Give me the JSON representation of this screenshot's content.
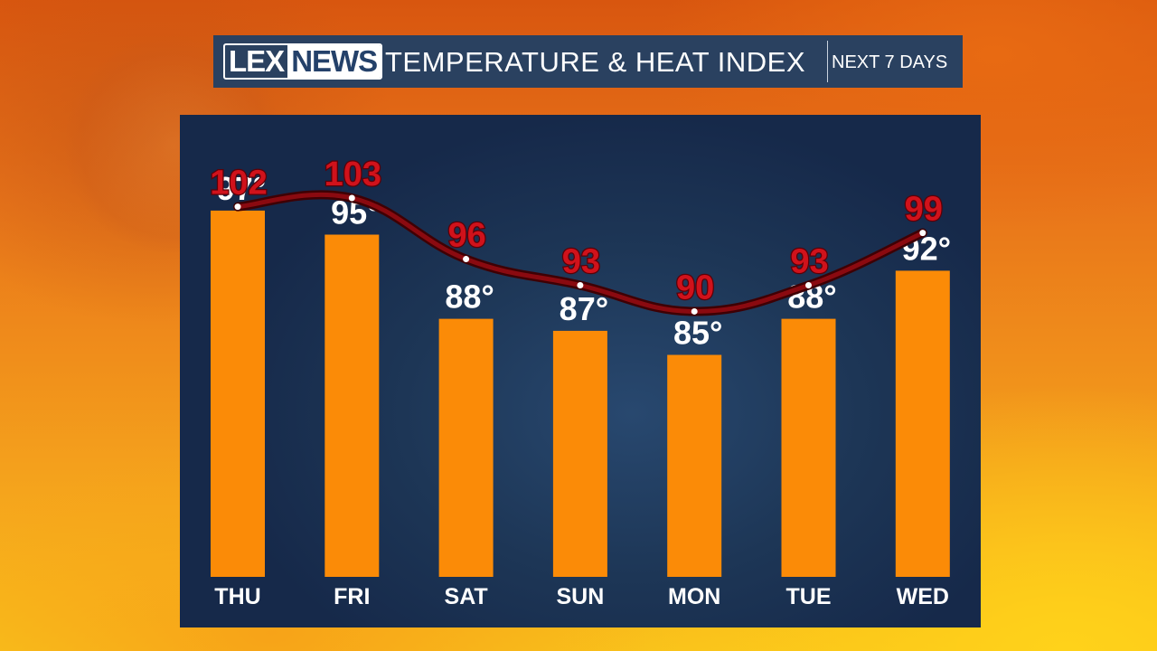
{
  "header": {
    "logo_left": "LEX",
    "logo_right": "NEWS",
    "title": "TEMPERATURE & HEAT INDEX",
    "subtitle": "NEXT 7 DAYS"
  },
  "colors": {
    "bar": "#fb8b07",
    "heat_index_line": "#5a0008",
    "heat_index_label": "#d0121b",
    "panel": "#1d3656",
    "header": "#2a4160"
  },
  "chart_data": {
    "type": "bar",
    "categories": [
      "THU",
      "FRI",
      "SAT",
      "SUN",
      "MON",
      "TUE",
      "WED"
    ],
    "series": [
      {
        "type": "bar",
        "values": [
          97,
          95,
          88,
          87,
          85,
          88,
          92
        ],
        "labels": [
          "97°",
          "95°",
          "88°",
          "87°",
          "85°",
          "88°",
          "92°"
        ]
      },
      {
        "type": "line",
        "values": [
          102,
          103,
          96,
          93,
          90,
          93,
          99
        ],
        "labels": [
          "102",
          "103",
          "96",
          "93",
          "90",
          "93",
          "99"
        ]
      }
    ],
    "title": "TEMPERATURE & HEAT INDEX",
    "xlabel": "",
    "ylabel": "",
    "grid": false,
    "legend": "none"
  }
}
